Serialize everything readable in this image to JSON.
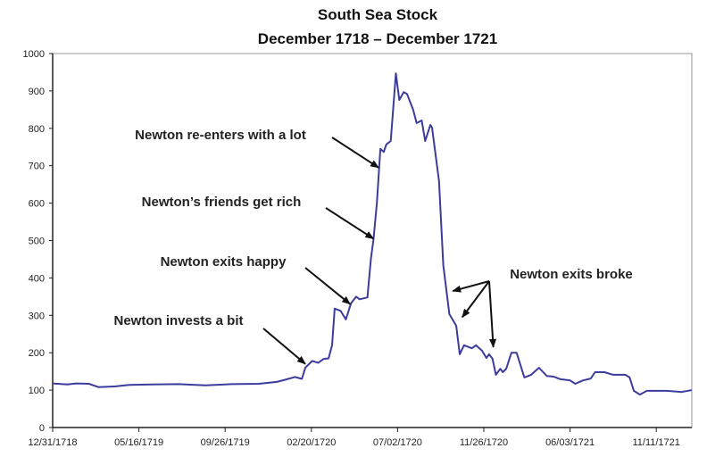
{
  "chart_data": {
    "type": "line",
    "title": "South Sea Stock",
    "subtitle": "December 1718 – December 1721",
    "xlabel": "",
    "ylabel": "",
    "ylim": [
      0,
      1000
    ],
    "yticks": [
      0,
      100,
      200,
      300,
      400,
      500,
      600,
      700,
      800,
      900,
      1000
    ],
    "xtick_labels": [
      "12/31/1718",
      "05/16/1719",
      "09/26/1719",
      "02/20/1720",
      "07/02/1720",
      "11/26/1720",
      "06/03/1721",
      "11/11/1721"
    ],
    "x_unit": "tick interval index (0 = 12/31/1718)",
    "xlim": [
      0,
      7.41
    ],
    "grid": false,
    "line_color": "#3c3c9c",
    "series": [
      {
        "name": "South Sea Stock price",
        "x": [
          0,
          0.17,
          0.27,
          0.42,
          0.53,
          0.73,
          0.89,
          1.15,
          1.46,
          1.77,
          2.08,
          2.39,
          2.6,
          2.7,
          2.81,
          2.89,
          2.93,
          3.01,
          3.08,
          3.14,
          3.2,
          3.24,
          3.27,
          3.34,
          3.4,
          3.46,
          3.52,
          3.56,
          3.65,
          3.69,
          3.72,
          3.76,
          3.8,
          3.84,
          3.87,
          3.92,
          3.98,
          4.02,
          4.07,
          4.11,
          4.18,
          4.22,
          4.28,
          4.32,
          4.38,
          4.4,
          4.48,
          4.53,
          4.6,
          4.68,
          4.72,
          4.77,
          4.86,
          4.91,
          4.98,
          5.03,
          5.06,
          5.1,
          5.14,
          5.19,
          5.22,
          5.26,
          5.32,
          5.38,
          5.47,
          5.55,
          5.64,
          5.73,
          5.81,
          5.89,
          6.0,
          6.06,
          6.15,
          6.24,
          6.29,
          6.4,
          6.5,
          6.64,
          6.69,
          6.74,
          6.81,
          6.89,
          7.12,
          7.29,
          7.41
        ],
        "y": [
          118,
          115,
          118,
          117,
          108,
          110,
          114,
          115,
          116,
          113,
          116,
          117,
          122,
          128,
          135,
          130,
          160,
          178,
          173,
          183,
          185,
          220,
          318,
          312,
          289,
          332,
          350,
          343,
          348,
          451,
          503,
          601,
          745,
          737,
          757,
          766,
          947,
          876,
          897,
          892,
          850,
          814,
          821,
          766,
          809,
          802,
          659,
          434,
          303,
          272,
          196,
          220,
          212,
          220,
          205,
          186,
          196,
          184,
          141,
          157,
          148,
          157,
          200,
          200,
          134,
          141,
          160,
          138,
          136,
          129,
          126,
          117,
          126,
          131,
          148,
          148,
          141,
          141,
          134,
          98,
          88,
          98,
          98,
          95,
          100
        ]
      }
    ],
    "annotations": [
      {
        "text": "Newton invests a bit",
        "x": 2.93,
        "y": 170
      },
      {
        "text": "Newton exits happy",
        "x": 3.45,
        "y": 330
      },
      {
        "text": "Newton’s friends get rich",
        "x": 3.72,
        "y": 505
      },
      {
        "text": "Newton re-enters with a lot",
        "x": 3.78,
        "y": 695
      },
      {
        "text": "Newton exits broke",
        "targets": [
          {
            "x": 4.64,
            "y": 365
          },
          {
            "x": 4.75,
            "y": 295
          },
          {
            "x": 5.11,
            "y": 215
          }
        ]
      }
    ]
  }
}
